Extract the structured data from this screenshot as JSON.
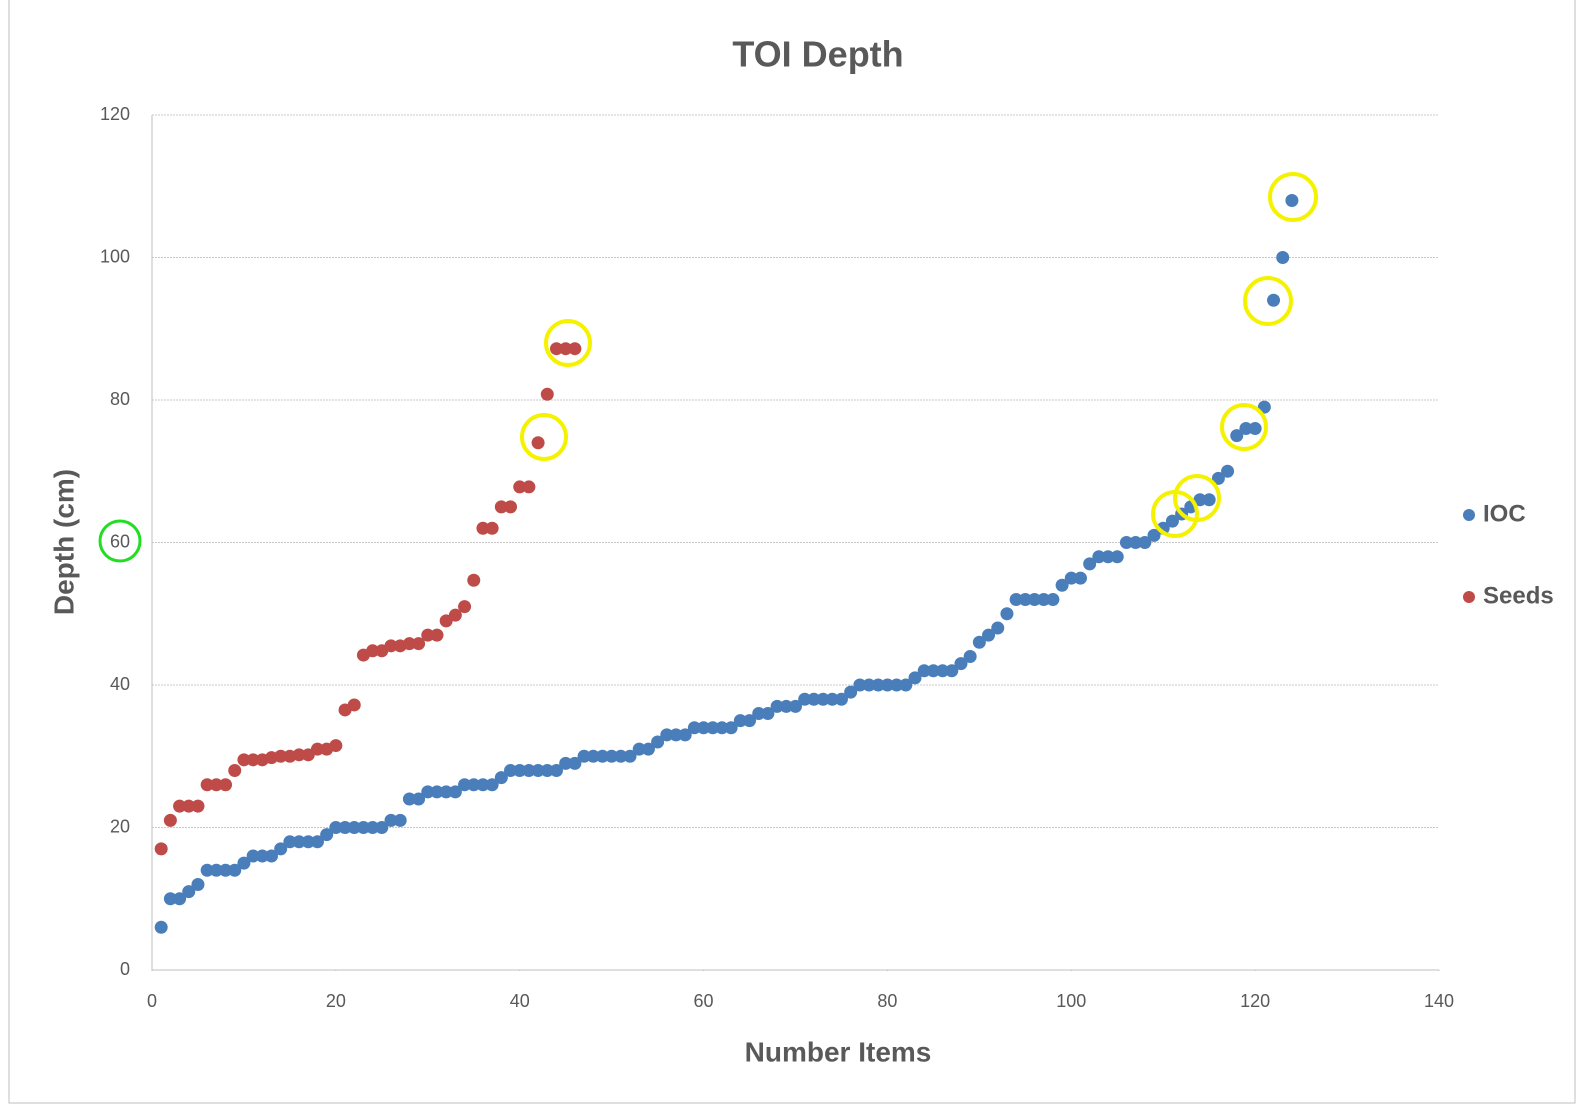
{
  "chart_data": {
    "type": "scatter",
    "title": "TOI Depth",
    "x_label": "Number Items",
    "y_label": "Depth (cm)",
    "xlim": [
      0,
      140
    ],
    "xticks": [
      0,
      20,
      40,
      60,
      80,
      100,
      120,
      140
    ],
    "ylim": [
      0,
      120
    ],
    "yticks": [
      0,
      20,
      40,
      60,
      80,
      100,
      120
    ],
    "grid": true,
    "legend": "right",
    "series": [
      {
        "name": "IOC",
        "color": "#4a7ebb",
        "x": [
          1,
          2,
          3,
          4,
          5,
          6,
          7,
          8,
          9,
          10,
          11,
          12,
          13,
          14,
          15,
          16,
          17,
          18,
          19,
          20,
          21,
          22,
          23,
          24,
          25,
          26,
          27,
          28,
          29,
          30,
          31,
          32,
          33,
          34,
          35,
          36,
          37,
          38,
          39,
          40,
          41,
          42,
          43,
          44,
          45,
          46,
          47,
          48,
          49,
          50,
          51,
          52,
          53,
          54,
          55,
          56,
          57,
          58,
          59,
          60,
          61,
          62,
          63,
          64,
          65,
          66,
          67,
          68,
          69,
          70,
          71,
          72,
          73,
          74,
          75,
          76,
          77,
          78,
          79,
          80,
          81,
          82,
          83,
          84,
          85,
          86,
          87,
          88,
          89,
          90,
          91,
          92,
          93,
          94,
          95,
          96,
          97,
          98,
          99,
          100,
          101,
          102,
          103,
          104,
          105,
          106,
          107,
          108,
          109,
          110,
          111,
          112,
          113,
          114,
          115,
          116,
          117,
          118,
          119,
          120,
          121,
          122,
          123,
          124
        ],
        "values": [
          6,
          10,
          10,
          11,
          12,
          14,
          14,
          14,
          14,
          15,
          16,
          16,
          16,
          17,
          18,
          18,
          18,
          18,
          19,
          20,
          20,
          20,
          20,
          20,
          20,
          21,
          21,
          24,
          24,
          25,
          25,
          25,
          25,
          26,
          26,
          26,
          26,
          27,
          28,
          28,
          28,
          28,
          28,
          28,
          29,
          29,
          30,
          30,
          30,
          30,
          30,
          30,
          31,
          31,
          32,
          33,
          33,
          33,
          34,
          34,
          34,
          34,
          34,
          35,
          35,
          36,
          36,
          37,
          37,
          37,
          38,
          38,
          38,
          38,
          38,
          39,
          40,
          40,
          40,
          40,
          40,
          40,
          41,
          42,
          42,
          42,
          42,
          43,
          44,
          46,
          47,
          48,
          50,
          52,
          52,
          52,
          52,
          52,
          54,
          55,
          55,
          57,
          58,
          58,
          58,
          60,
          60,
          60,
          61,
          62,
          63,
          64,
          65,
          66,
          66,
          69,
          70,
          75,
          76,
          76,
          79,
          94,
          100,
          108
        ]
      },
      {
        "name": "Seeds",
        "color": "#be4b48",
        "x": [
          1,
          2,
          3,
          4,
          5,
          6,
          7,
          8,
          9,
          10,
          11,
          12,
          13,
          14,
          15,
          16,
          17,
          18,
          19,
          20,
          21,
          22,
          23,
          24,
          25,
          26,
          27,
          28,
          29,
          30,
          31,
          32,
          33,
          34,
          35,
          36,
          37,
          38,
          39,
          40,
          41,
          42,
          43,
          44,
          45,
          46
        ],
        "values": [
          17,
          21,
          23,
          23,
          23,
          26,
          26,
          26,
          28,
          29.5,
          29.5,
          29.5,
          29.8,
          30,
          30,
          30.2,
          30.2,
          31,
          31,
          31.5,
          36.5,
          37.2,
          44.2,
          44.8,
          44.8,
          45.5,
          45.5,
          45.8,
          45.8,
          47,
          47,
          49,
          49.8,
          51,
          54.7,
          62,
          62,
          65,
          65,
          67.8,
          67.8,
          74,
          80.8,
          87.2,
          87.2,
          87.2
        ]
      }
    ]
  }
}
